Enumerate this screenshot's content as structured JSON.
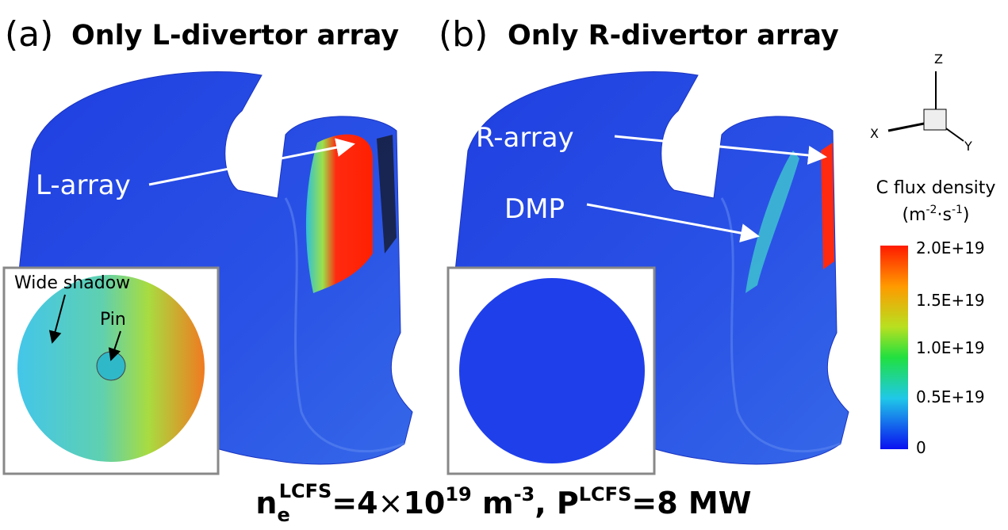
{
  "panels": [
    {
      "label": "(a)",
      "title": "Only L-divertor array",
      "annotations": [
        "L-array",
        "Wide shadow",
        "Pin"
      ]
    },
    {
      "label": "(b)",
      "title": "Only R-divertor array",
      "annotations": [
        "R-array",
        "DMP"
      ]
    }
  ],
  "axes_icon": {
    "z": "Z",
    "x": "X",
    "y": "Y"
  },
  "colorbar": {
    "title": "C flux density",
    "unit": [
      "(m",
      "-2",
      "·s",
      "-1",
      ")"
    ],
    "labels": [
      "2.0E+19",
      "1.5E+19",
      "1.0E+19",
      "0.5E+19",
      "0"
    ]
  },
  "caption": [
    "n",
    "e",
    "LCFS",
    "=4",
    "×",
    "10",
    "19",
    " m",
    "-3",
    ", P",
    "LCFS",
    "=8 MW"
  ]
}
